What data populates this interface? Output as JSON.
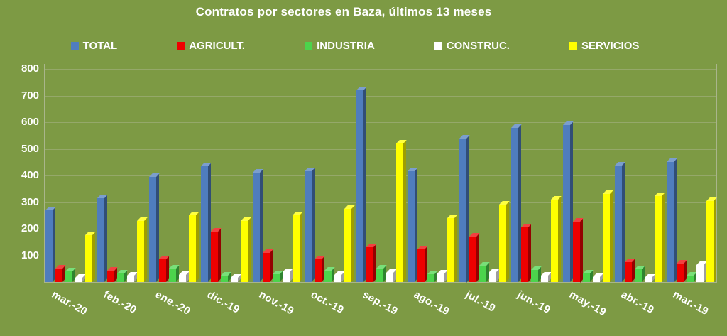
{
  "chart_data": {
    "type": "bar",
    "title": "Contratos por sectores en Baza, últimos 13 meses",
    "categories": [
      "mar.-20",
      "feb.-20",
      "ene.-20",
      "dic.-19",
      "nov.-19",
      "oct.-19",
      "sep.-19",
      "ago.-19",
      "jul.-19",
      "jun.-19",
      "may.-19",
      "abr.-19",
      "mar.-19"
    ],
    "series": [
      {
        "name": "TOTAL",
        "color": "#4F7DBE",
        "values": [
          270,
          315,
          395,
          435,
          410,
          415,
          720,
          415,
          540,
          578,
          590,
          437,
          452
        ]
      },
      {
        "name": "AGRICULT.",
        "color": "#EE0000",
        "values": [
          50,
          42,
          85,
          190,
          110,
          85,
          130,
          122,
          170,
          205,
          228,
          75,
          70
        ]
      },
      {
        "name": "INDUSTRIA",
        "color": "#4CD44C",
        "values": [
          40,
          32,
          50,
          25,
          30,
          42,
          50,
          30,
          62,
          45,
          33,
          48,
          25
        ]
      },
      {
        "name": "CONSTRUC.",
        "color": "#FFFFFF",
        "values": [
          15,
          25,
          28,
          15,
          37,
          27,
          36,
          32,
          38,
          25,
          18,
          16,
          65
        ]
      },
      {
        "name": "SERVICIOS",
        "color": "#FFFF00",
        "values": [
          175,
          230,
          250,
          230,
          250,
          275,
          520,
          240,
          290,
          310,
          330,
          322,
          305
        ]
      }
    ],
    "ylim": [
      0,
      800
    ],
    "ytick_interval": 100,
    "yticks": [
      800,
      700,
      600,
      500,
      400,
      300,
      200,
      100
    ],
    "grid": true,
    "legend_position": "top"
  },
  "colors": {
    "background": "#7D9A44",
    "text": "#FFFFFF",
    "gridline": "#A9B58B",
    "axis": "#A9B58B"
  }
}
